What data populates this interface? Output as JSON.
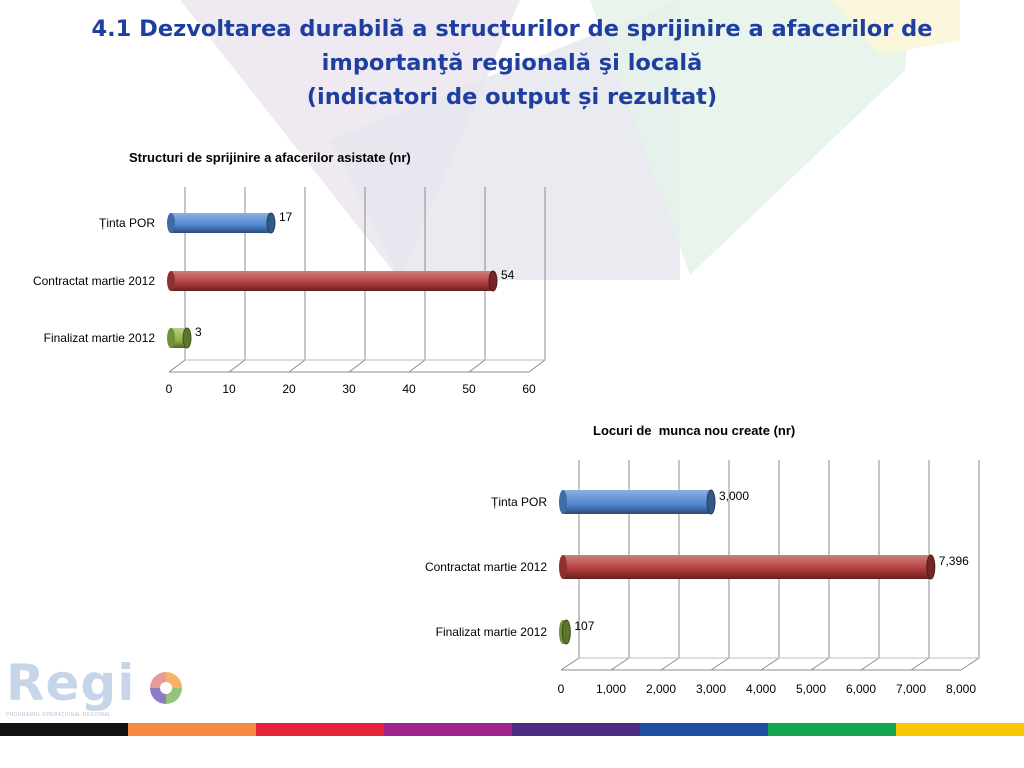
{
  "title_lines": [
    "4.1 Dezvoltarea durabilă a structurilor de sprijinire a afacerilor de",
    "importanţă regională şi locală",
    "(indicatori de output și rezultat)"
  ],
  "chart_data": [
    {
      "type": "bar",
      "orientation": "horizontal",
      "title": "Structuri de sprijinire a afacerilor asistate (nr)",
      "categories": [
        "Ținta POR",
        "Contractat martie 2012",
        "Finalizat martie 2012"
      ],
      "values": [
        17,
        54,
        3
      ],
      "value_labels": [
        "17",
        "54",
        "3"
      ],
      "colors": [
        "#4f86d0",
        "#b13c3a",
        "#8db547"
      ],
      "xlim": [
        0,
        60
      ],
      "xticks": [
        "0",
        "10",
        "20",
        "30",
        "40",
        "50",
        "60"
      ],
      "grid": true,
      "legend": "none"
    },
    {
      "type": "bar",
      "orientation": "horizontal",
      "title": "Locuri de  munca nou create (nr)",
      "categories": [
        "Ținta POR",
        "Contractat martie 2012",
        "Finalizat martie 2012"
      ],
      "values": [
        3000,
        7396,
        107
      ],
      "value_labels": [
        "3,000",
        "7,396",
        "107"
      ],
      "colors": [
        "#4f86d0",
        "#b13c3a",
        "#8db547"
      ],
      "xlim": [
        0,
        8000
      ],
      "xticks": [
        "0",
        "1,000",
        "2,000",
        "3,000",
        "4,000",
        "5,000",
        "6,000",
        "7,000",
        "8,000"
      ],
      "grid": true,
      "legend": "none"
    }
  ],
  "logo": {
    "word": "Regi",
    "subtitle": "PROGRAMUL OPERAȚIONAL REGIONAL"
  },
  "stripe_colors": [
    "#111111",
    "#f58a42",
    "#e5243b",
    "#a3238e",
    "#4b2d83",
    "#1f4fa3",
    "#14a550",
    "#f7c700"
  ]
}
